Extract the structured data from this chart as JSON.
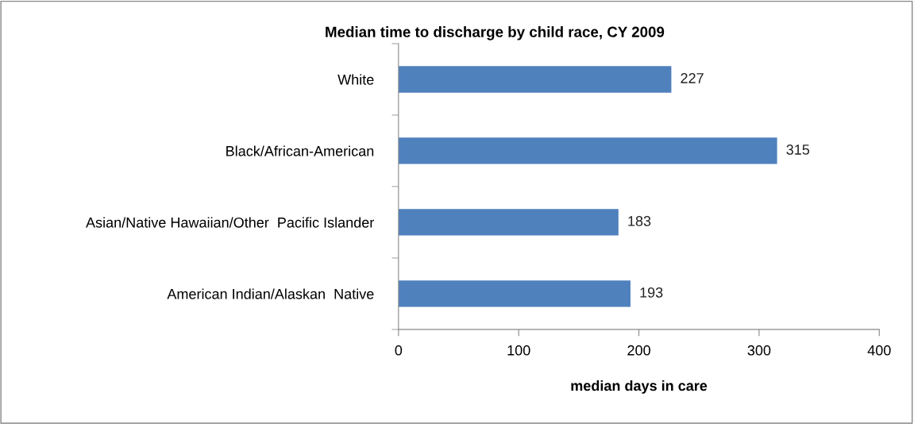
{
  "chart_data": {
    "type": "bar",
    "orientation": "horizontal",
    "title": "Median time to discharge by child race, CY 2009",
    "xlabel": "median days in care",
    "categories": [
      "White",
      "Black/African-American",
      "Asian/Native Hawaiian/Other  Pacific Islander",
      "American Indian/Alaskan  Native"
    ],
    "values": [
      227,
      315,
      183,
      193
    ],
    "color": "#4f81bd",
    "data_labels": true,
    "xlim": [
      0,
      400
    ],
    "xticks": [
      0,
      100,
      200,
      300,
      400
    ],
    "grid": false,
    "legend": false
  }
}
